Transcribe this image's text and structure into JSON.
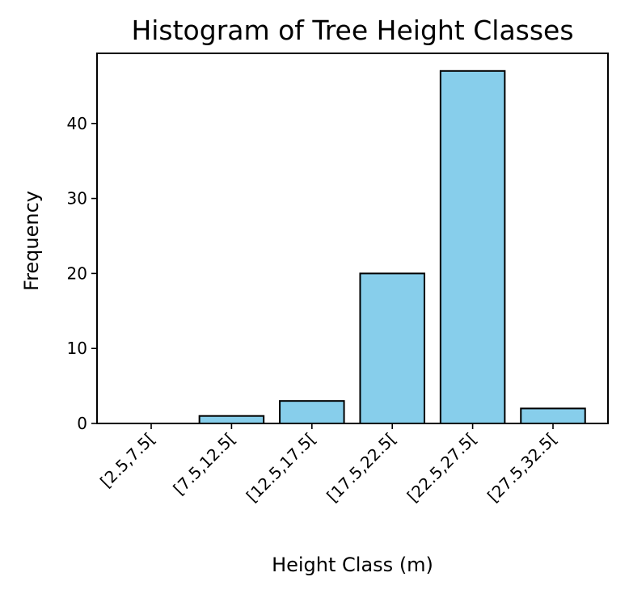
{
  "chart_data": {
    "type": "bar",
    "title": "Histogram of Tree Height Classes",
    "xlabel": "Height Class (m)",
    "ylabel": "Frequency",
    "categories": [
      "[2.5,7.5[",
      "[7.5,12.5[",
      "[12.5,17.5[",
      "[17.5,22.5[",
      "[22.5,27.5[",
      "[27.5,32.5["
    ],
    "values": [
      0,
      1,
      3,
      20,
      47,
      2
    ],
    "ylim": [
      0,
      49.35
    ],
    "yticks": [
      0,
      10,
      20,
      30,
      40
    ],
    "grid": false,
    "bar_color": "#87CEEB",
    "edge_color": "#000000"
  }
}
